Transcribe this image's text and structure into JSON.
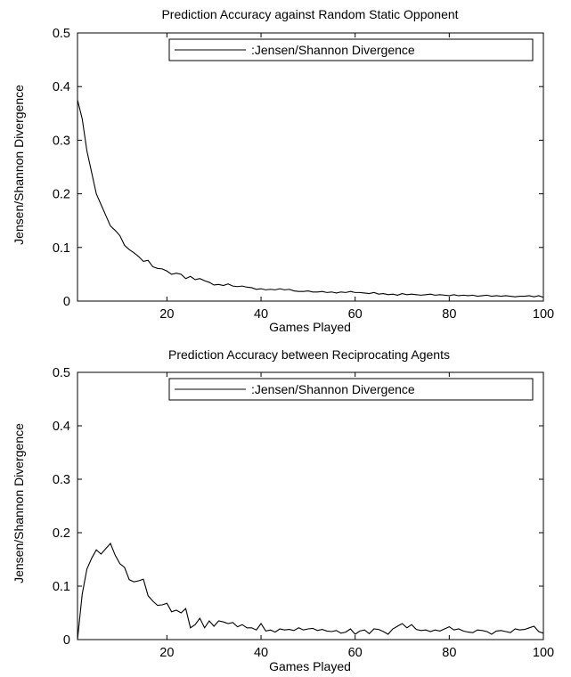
{
  "chart_data": [
    {
      "type": "line",
      "title": "Prediction Accuracy against Random Static Opponent",
      "xlabel": "Games Played",
      "ylabel": "Jensen/Shannon Divergence",
      "xlim": [
        1,
        100
      ],
      "ylim": [
        0,
        0.5
      ],
      "xticks": [
        20,
        40,
        60,
        80,
        100
      ],
      "yticks": [
        0,
        0.1,
        0.2,
        0.3,
        0.4,
        0.5
      ],
      "legend": "top-right",
      "grid": false,
      "series": [
        {
          "name": ":Jensen/Shannon Divergence",
          "x": [
            1,
            2,
            3,
            4,
            5,
            6,
            7,
            8,
            9,
            10,
            11,
            12,
            13,
            14,
            15,
            16,
            17,
            18,
            19,
            20,
            21,
            22,
            23,
            24,
            25,
            26,
            27,
            28,
            29,
            30,
            31,
            32,
            33,
            34,
            35,
            36,
            37,
            38,
            39,
            40,
            41,
            42,
            43,
            44,
            45,
            46,
            47,
            48,
            49,
            50,
            51,
            52,
            53,
            54,
            55,
            56,
            57,
            58,
            59,
            60,
            61,
            62,
            63,
            64,
            65,
            66,
            67,
            68,
            69,
            70,
            71,
            72,
            73,
            74,
            75,
            76,
            77,
            78,
            79,
            80,
            81,
            82,
            83,
            84,
            85,
            86,
            87,
            88,
            89,
            90,
            91,
            92,
            93,
            94,
            95,
            96,
            97,
            98,
            99,
            100
          ],
          "y": [
            0.375,
            0.34,
            0.28,
            0.24,
            0.2,
            0.18,
            0.16,
            0.14,
            0.132,
            0.122,
            0.104,
            0.096,
            0.09,
            0.083,
            0.074,
            0.076,
            0.064,
            0.061,
            0.06,
            0.056,
            0.05,
            0.052,
            0.05,
            0.042,
            0.046,
            0.04,
            0.042,
            0.038,
            0.035,
            0.03,
            0.031,
            0.029,
            0.032,
            0.028,
            0.027,
            0.028,
            0.026,
            0.025,
            0.022,
            0.023,
            0.021,
            0.022,
            0.021,
            0.023,
            0.021,
            0.022,
            0.019,
            0.018,
            0.018,
            0.019,
            0.017,
            0.017,
            0.018,
            0.016,
            0.017,
            0.015,
            0.017,
            0.016,
            0.018,
            0.016,
            0.016,
            0.015,
            0.014,
            0.016,
            0.013,
            0.014,
            0.012,
            0.013,
            0.011,
            0.014,
            0.012,
            0.013,
            0.012,
            0.011,
            0.012,
            0.013,
            0.011,
            0.012,
            0.011,
            0.01,
            0.012,
            0.01,
            0.011,
            0.01,
            0.011,
            0.009,
            0.01,
            0.011,
            0.009,
            0.01,
            0.009,
            0.01,
            0.009,
            0.008,
            0.009,
            0.009,
            0.01,
            0.008,
            0.01,
            0.007
          ]
        }
      ]
    },
    {
      "type": "line",
      "title": "Prediction Accuracy between Reciprocating Agents",
      "xlabel": "Games Played",
      "ylabel": "Jensen/Shannon Divergence",
      "xlim": [
        1,
        100
      ],
      "ylim": [
        0,
        0.5
      ],
      "xticks": [
        20,
        40,
        60,
        80,
        100
      ],
      "yticks": [
        0,
        0.1,
        0.2,
        0.3,
        0.4,
        0.5
      ],
      "legend": "top-right",
      "grid": false,
      "series": [
        {
          "name": ":Jensen/Shannon Divergence",
          "x": [
            1,
            2,
            3,
            4,
            5,
            6,
            7,
            8,
            9,
            10,
            11,
            12,
            13,
            14,
            15,
            16,
            17,
            18,
            19,
            20,
            21,
            22,
            23,
            24,
            25,
            26,
            27,
            28,
            29,
            30,
            31,
            32,
            33,
            34,
            35,
            36,
            37,
            38,
            39,
            40,
            41,
            42,
            43,
            44,
            45,
            46,
            47,
            48,
            49,
            50,
            51,
            52,
            53,
            54,
            55,
            56,
            57,
            58,
            59,
            60,
            61,
            62,
            63,
            64,
            65,
            66,
            67,
            68,
            69,
            70,
            71,
            72,
            73,
            74,
            75,
            76,
            77,
            78,
            79,
            80,
            81,
            82,
            83,
            84,
            85,
            86,
            87,
            88,
            89,
            90,
            91,
            92,
            93,
            94,
            95,
            96,
            97,
            98,
            99,
            100
          ],
          "y": [
            0.0,
            0.085,
            0.132,
            0.152,
            0.168,
            0.16,
            0.17,
            0.18,
            0.158,
            0.142,
            0.135,
            0.112,
            0.108,
            0.11,
            0.113,
            0.082,
            0.072,
            0.064,
            0.065,
            0.068,
            0.052,
            0.055,
            0.05,
            0.058,
            0.022,
            0.028,
            0.04,
            0.022,
            0.035,
            0.025,
            0.035,
            0.033,
            0.03,
            0.032,
            0.024,
            0.028,
            0.022,
            0.022,
            0.018,
            0.03,
            0.016,
            0.018,
            0.014,
            0.02,
            0.018,
            0.019,
            0.017,
            0.022,
            0.018,
            0.02,
            0.021,
            0.017,
            0.019,
            0.016,
            0.015,
            0.017,
            0.012,
            0.014,
            0.02,
            0.01,
            0.016,
            0.018,
            0.011,
            0.02,
            0.019,
            0.015,
            0.01,
            0.02,
            0.025,
            0.03,
            0.022,
            0.028,
            0.019,
            0.017,
            0.018,
            0.015,
            0.018,
            0.016,
            0.02,
            0.024,
            0.018,
            0.02,
            0.016,
            0.014,
            0.013,
            0.018,
            0.017,
            0.015,
            0.01,
            0.016,
            0.017,
            0.015,
            0.013,
            0.02,
            0.018,
            0.019,
            0.022,
            0.025,
            0.015,
            0.012
          ]
        }
      ]
    }
  ]
}
